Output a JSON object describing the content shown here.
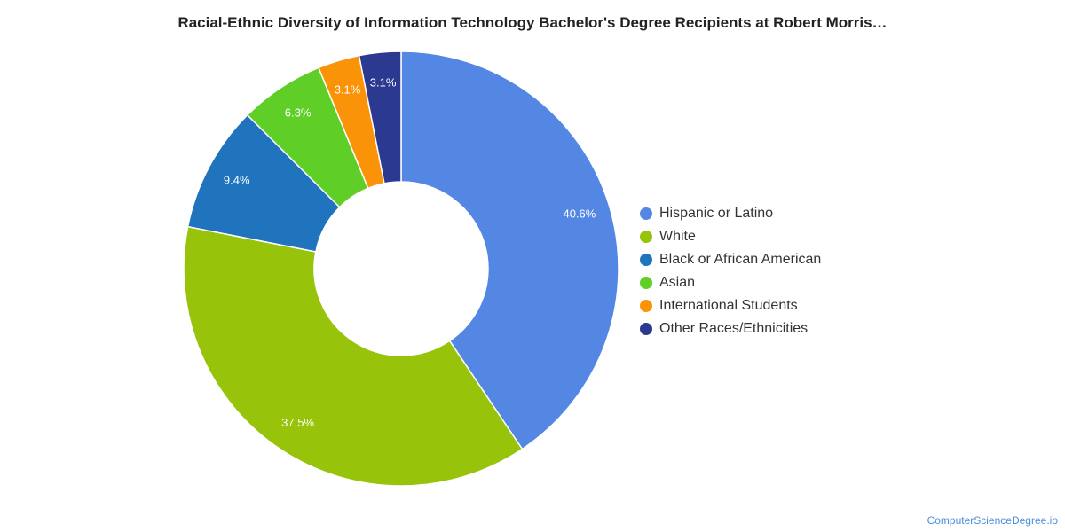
{
  "chart_data": {
    "type": "pie",
    "title": "Racial-Ethnic Diversity of Information Technology Bachelor's Degree Recipients at Robert Morris…",
    "categories": [
      "Hispanic or Latino",
      "White",
      "Black or African American",
      "Asian",
      "International Students",
      "Other Races/Ethnicities"
    ],
    "values": [
      40.6,
      37.5,
      9.4,
      6.3,
      3.1,
      3.1
    ],
    "value_labels": [
      "40.6%",
      "37.5%",
      "9.4%",
      "6.3%",
      "3.1%",
      "3.1%"
    ],
    "colors": [
      "#5487e3",
      "#97c30a",
      "#1f74bd",
      "#5fcf28",
      "#fb9308",
      "#2b3990"
    ],
    "donut": true,
    "legend_position": "right"
  },
  "watermark": "ComputerScienceDegree.io"
}
